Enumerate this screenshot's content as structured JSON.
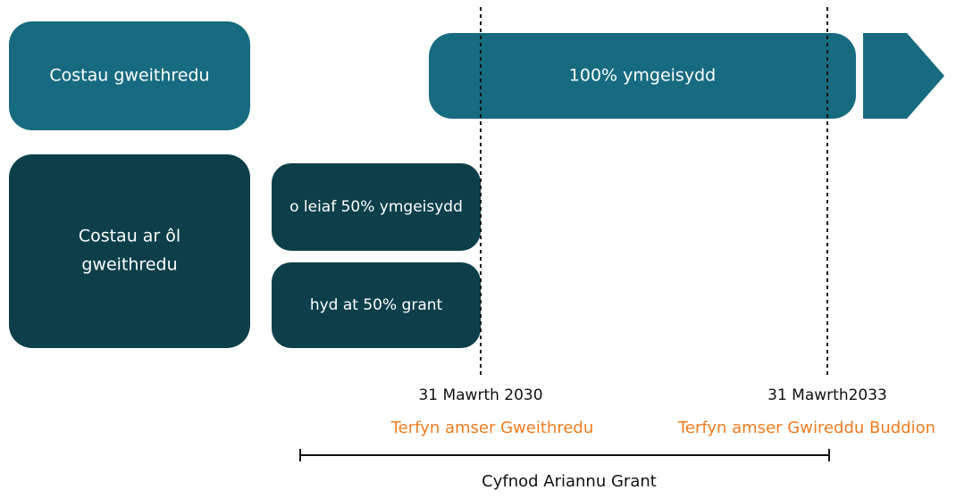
{
  "boxes": {
    "operating": "Costau gweithredu",
    "post_operating_1": "Costau ar ôl",
    "post_operating_2": "gweithredu",
    "applicant_100": "100% ymgeisydd",
    "applicant_50": "o leiaf 50% ymgeisydd",
    "grant_50": "hyd at 50% grant"
  },
  "milestones": [
    {
      "date": "31 Mawrth 2030",
      "label": "Terfyn amser Gweithredu"
    },
    {
      "date": "31 Mawrth2033",
      "label": "Terfyn amser Gwireddu Buddion"
    }
  ],
  "period": "Cyfnod Ariannu Grant"
}
